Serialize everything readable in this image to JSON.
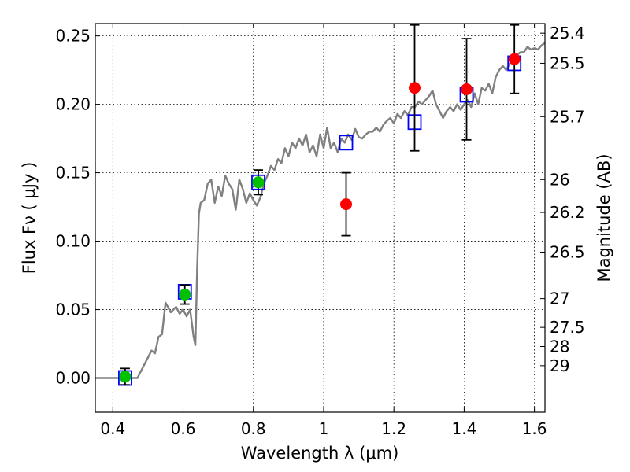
{
  "chart_data": {
    "type": "scatter",
    "title": "",
    "xlabel": "Wavelength  λ (μm)",
    "ylabel": "Flux  Fν  ( μJy )",
    "y2label": "Magnitude (AB)",
    "xlim": [
      0.35,
      1.63
    ],
    "ylim": [
      -0.025,
      0.259
    ],
    "grid": true,
    "x_ticks": [
      0.4,
      0.6,
      0.8,
      1.0,
      1.2,
      1.4,
      1.6
    ],
    "x_tick_labels": [
      "0.4",
      "0.6",
      "0.8",
      "1",
      "1.2",
      "1.4",
      "1.6"
    ],
    "y_ticks": [
      0.0,
      0.05,
      0.1,
      0.15,
      0.2,
      0.25
    ],
    "y_tick_labels": [
      "0.00",
      "0.05",
      "0.10",
      "0.15",
      "0.20",
      "0.25"
    ],
    "y2_ticks": [
      {
        "label": "25.4",
        "flux": 0.252
      },
      {
        "label": "25.5",
        "flux": 0.23
      },
      {
        "label": "25.7",
        "flux": 0.191
      },
      {
        "label": "26",
        "flux": 0.145
      },
      {
        "label": "26.2",
        "flux": 0.121
      },
      {
        "label": "26.5",
        "flux": 0.092
      },
      {
        "label": "27",
        "flux": 0.058
      },
      {
        "label": "27.5",
        "flux": 0.037
      },
      {
        "label": "28",
        "flux": 0.023
      },
      {
        "label": "29",
        "flux": 0.009
      }
    ],
    "colors": {
      "model": "#808080",
      "detected": "#00c000",
      "near_ir": "#ff0000",
      "model_box": "#0000ff",
      "error_bar": "#000000",
      "zero_line": "#808080"
    },
    "series": [
      {
        "kind": "model_spectrum",
        "x": [
          0.35,
          0.4,
          0.47,
          0.49,
          0.51,
          0.52,
          0.53,
          0.54,
          0.55,
          0.565,
          0.58,
          0.59,
          0.6,
          0.61,
          0.62,
          0.63,
          0.635,
          0.64,
          0.645,
          0.65,
          0.66,
          0.67,
          0.68,
          0.69,
          0.7,
          0.71,
          0.72,
          0.73,
          0.74,
          0.75,
          0.76,
          0.77,
          0.78,
          0.79,
          0.8,
          0.81,
          0.82,
          0.83,
          0.84,
          0.85,
          0.86,
          0.87,
          0.88,
          0.89,
          0.9,
          0.91,
          0.92,
          0.93,
          0.94,
          0.95,
          0.96,
          0.97,
          0.98,
          0.99,
          1.0,
          1.01,
          1.02,
          1.03,
          1.04,
          1.05,
          1.06,
          1.07,
          1.08,
          1.09,
          1.1,
          1.11,
          1.12,
          1.13,
          1.14,
          1.15,
          1.16,
          1.17,
          1.18,
          1.19,
          1.2,
          1.21,
          1.22,
          1.23,
          1.24,
          1.25,
          1.26,
          1.27,
          1.28,
          1.29,
          1.3,
          1.31,
          1.32,
          1.33,
          1.34,
          1.35,
          1.36,
          1.37,
          1.38,
          1.39,
          1.4,
          1.41,
          1.42,
          1.43,
          1.44,
          1.45,
          1.46,
          1.47,
          1.48,
          1.49,
          1.5,
          1.51,
          1.52,
          1.53,
          1.54,
          1.55,
          1.56,
          1.57,
          1.58,
          1.59,
          1.6,
          1.61,
          1.62,
          1.63
        ],
        "y": [
          0.0,
          0.0,
          0.0,
          0.01,
          0.02,
          0.018,
          0.03,
          0.032,
          0.055,
          0.048,
          0.052,
          0.047,
          0.05,
          0.045,
          0.05,
          0.03,
          0.024,
          0.08,
          0.12,
          0.128,
          0.13,
          0.142,
          0.145,
          0.128,
          0.14,
          0.133,
          0.148,
          0.142,
          0.138,
          0.123,
          0.145,
          0.138,
          0.128,
          0.135,
          0.13,
          0.126,
          0.132,
          0.142,
          0.148,
          0.155,
          0.152,
          0.16,
          0.157,
          0.168,
          0.162,
          0.172,
          0.168,
          0.175,
          0.17,
          0.178,
          0.165,
          0.17,
          0.162,
          0.178,
          0.168,
          0.183,
          0.168,
          0.172,
          0.165,
          0.175,
          0.172,
          0.178,
          0.174,
          0.182,
          0.176,
          0.175,
          0.178,
          0.18,
          0.18,
          0.183,
          0.18,
          0.185,
          0.188,
          0.19,
          0.186,
          0.193,
          0.19,
          0.195,
          0.192,
          0.198,
          0.198,
          0.202,
          0.2,
          0.203,
          0.206,
          0.21,
          0.2,
          0.195,
          0.19,
          0.195,
          0.198,
          0.195,
          0.2,
          0.196,
          0.2,
          0.203,
          0.198,
          0.208,
          0.2,
          0.212,
          0.21,
          0.215,
          0.208,
          0.22,
          0.225,
          0.228,
          0.225,
          0.23,
          0.232,
          0.236,
          0.238,
          0.238,
          0.242,
          0.24,
          0.241,
          0.24,
          0.243,
          0.245
        ]
      },
      {
        "kind": "model_photometry_boxes",
        "x": [
          0.435,
          0.605,
          0.814,
          1.064,
          1.259,
          1.407,
          1.543
        ],
        "y": [
          0.0,
          0.063,
          0.143,
          0.172,
          0.187,
          0.207,
          0.23
        ]
      },
      {
        "kind": "detections",
        "x": [
          0.435,
          0.605,
          0.814
        ],
        "y": [
          0.001,
          0.061,
          0.143
        ],
        "yerr": [
          0.006,
          0.007,
          0.009
        ]
      },
      {
        "kind": "near_ir_measurements",
        "x": [
          1.064,
          1.259,
          1.407,
          1.543
        ],
        "y": [
          0.127,
          0.212,
          0.211,
          0.233
        ],
        "yerr": [
          0.023,
          0.046,
          0.037,
          0.025
        ]
      }
    ]
  }
}
